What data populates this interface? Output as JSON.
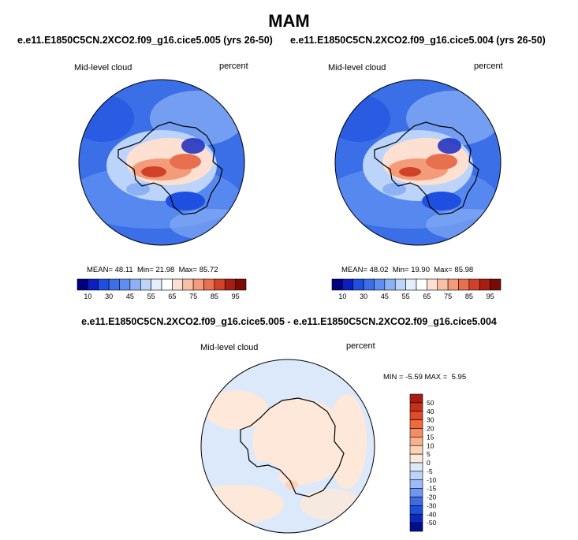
{
  "page": {
    "title": "MAM",
    "left_case": "e.e11.E1850C5CN.2XCO2.f09_g16.cice5.005 (yrs 26-50)",
    "right_case": "e.e11.E1850C5CN.2XCO2.f09_g16.cice5.004 (yrs 26-50)",
    "diff_case": "e.e11.E1850C5CN.2XCO2.f09_g16.cice5.005 - e.e11.E1850C5CN.2XCO2.f09_g16.cice5.004"
  },
  "colors": {
    "ocean_field": "#3a6fe8",
    "diff_neutral": "#dbe9fb",
    "coast": "#000000"
  },
  "chart_data": [
    {
      "type": "heatmap",
      "name": "left-map",
      "variable": "Mid-level cloud",
      "units": "percent",
      "projection": "south polar stereographic",
      "mean_label": "MEAN=",
      "mean": "48.11",
      "min_label": "Min=",
      "min": "21.98",
      "max_label": "Max=",
      "max": "85.72",
      "colorbar": {
        "orientation": "horizontal",
        "colors": [
          "#00007f",
          "#0a1fbe",
          "#1f4fe0",
          "#3a6fe8",
          "#5e8ef0",
          "#8cb2f5",
          "#bcd3fa",
          "#e4eefc",
          "#ffffff",
          "#fde0d2",
          "#f9c0a6",
          "#f49c7a",
          "#e9704f",
          "#d0412a",
          "#a81d12",
          "#7a0a05"
        ],
        "tick_labels": [
          "10",
          "30",
          "45",
          "55",
          "65",
          "75",
          "85",
          "95"
        ]
      }
    },
    {
      "type": "heatmap",
      "name": "right-map",
      "variable": "Mid-level cloud",
      "units": "percent",
      "projection": "south polar stereographic",
      "mean_label": "MEAN=",
      "mean": "48.02",
      "min_label": "Min=",
      "min": "19.90",
      "max_label": "Max=",
      "max": "85.98",
      "colorbar": {
        "orientation": "horizontal",
        "colors": [
          "#00007f",
          "#0a1fbe",
          "#1f4fe0",
          "#3a6fe8",
          "#5e8ef0",
          "#8cb2f5",
          "#bcd3fa",
          "#e4eefc",
          "#ffffff",
          "#fde0d2",
          "#f9c0a6",
          "#f49c7a",
          "#e9704f",
          "#d0412a",
          "#a81d12",
          "#7a0a05"
        ],
        "tick_labels": [
          "10",
          "30",
          "45",
          "55",
          "65",
          "75",
          "85",
          "95"
        ]
      }
    },
    {
      "type": "heatmap",
      "name": "diff-map",
      "variable": "Mid-level cloud",
      "units": "percent",
      "projection": "south polar stereographic",
      "min_label": "MIN =",
      "min": "-5.59",
      "max_label": "MAX =",
      "max": "5.95",
      "colorbar": {
        "orientation": "vertical",
        "colors": [
          "#a81d12",
          "#c5301c",
          "#de4a2a",
          "#f06a3e",
          "#f68d62",
          "#f9b08c",
          "#fcd2b8",
          "#fde8da",
          "#dbe9fb",
          "#bcd3fa",
          "#9dbcf6",
          "#6f97ef",
          "#3e6de3",
          "#1f4fd8",
          "#0a2abf",
          "#000d8f"
        ],
        "tick_labels": [
          "50",
          "40",
          "30",
          "20",
          "15",
          "10",
          "5",
          "0",
          "-5",
          "-10",
          "-15",
          "-20",
          "-30",
          "-40",
          "-50"
        ]
      }
    }
  ]
}
